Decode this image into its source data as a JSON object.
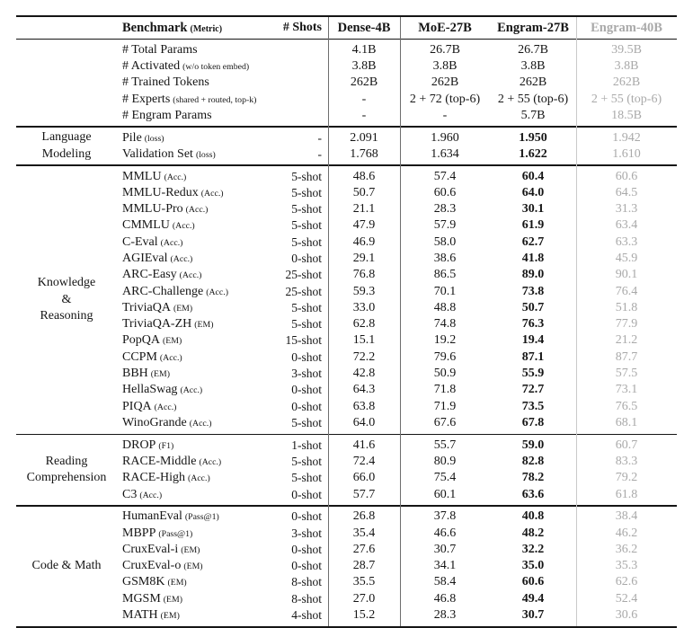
{
  "table": {
    "header": {
      "benchmark_label": "Benchmark",
      "metric_label": "(Metric)",
      "shots_label": "# Shots",
      "models": [
        "Dense-4B",
        "MoE-27B",
        "Engram-27B",
        "Engram-40B"
      ]
    },
    "colors": {
      "text": "#151515",
      "muted_column": "#a9a9a9",
      "rule": "#151515",
      "vline_dark": "#6e6e6e",
      "vline_light": "#c9c9c9"
    },
    "sections": [
      {
        "category_lines": [],
        "bold_engram": false,
        "rows": [
          {
            "name": "# Total Params",
            "metric": "",
            "shots": "",
            "values": [
              "4.1B",
              "26.7B",
              "26.7B",
              "39.5B"
            ]
          },
          {
            "name": "# Activated",
            "metric": "(w/o token embed)",
            "shots": "",
            "values": [
              "3.8B",
              "3.8B",
              "3.8B",
              "3.8B"
            ]
          },
          {
            "name": "# Trained Tokens",
            "metric": "",
            "shots": "",
            "values": [
              "262B",
              "262B",
              "262B",
              "262B"
            ]
          },
          {
            "name": "# Experts",
            "metric": "(shared + routed, top-k)",
            "shots": "",
            "values": [
              "-",
              "2 + 72 (top-6)",
              "2 + 55 (top-6)",
              "2 + 55 (top-6)"
            ]
          },
          {
            "name": "# Engram Params",
            "metric": "",
            "shots": "",
            "values": [
              "-",
              "-",
              "5.7B",
              "18.5B"
            ]
          }
        ]
      },
      {
        "category_lines": [
          "Language",
          "Modeling"
        ],
        "bold_engram": true,
        "rows": [
          {
            "name": "Pile",
            "metric": "(loss)",
            "shots": "-",
            "values": [
              "2.091",
              "1.960",
              "1.950",
              "1.942"
            ]
          },
          {
            "name": "Validation Set",
            "metric": "(loss)",
            "shots": "-",
            "values": [
              "1.768",
              "1.634",
              "1.622",
              "1.610"
            ]
          }
        ]
      },
      {
        "category_lines": [
          "Knowledge",
          "&",
          "Reasoning"
        ],
        "bold_engram": true,
        "rows": [
          {
            "name": "MMLU",
            "metric": "(Acc.)",
            "shots": "5-shot",
            "values": [
              "48.6",
              "57.4",
              "60.4",
              "60.6"
            ]
          },
          {
            "name": "MMLU-Redux",
            "metric": "(Acc.)",
            "shots": "5-shot",
            "values": [
              "50.7",
              "60.6",
              "64.0",
              "64.5"
            ]
          },
          {
            "name": "MMLU-Pro",
            "metric": "(Acc.)",
            "shots": "5-shot",
            "values": [
              "21.1",
              "28.3",
              "30.1",
              "31.3"
            ]
          },
          {
            "name": "CMMLU",
            "metric": "(Acc.)",
            "shots": "5-shot",
            "values": [
              "47.9",
              "57.9",
              "61.9",
              "63.4"
            ]
          },
          {
            "name": "C-Eval",
            "metric": "(Acc.)",
            "shots": "5-shot",
            "values": [
              "46.9",
              "58.0",
              "62.7",
              "63.3"
            ]
          },
          {
            "name": "AGIEval",
            "metric": "(Acc.)",
            "shots": "0-shot",
            "values": [
              "29.1",
              "38.6",
              "41.8",
              "45.9"
            ]
          },
          {
            "name": "ARC-Easy",
            "metric": "(Acc.)",
            "shots": "25-shot",
            "values": [
              "76.8",
              "86.5",
              "89.0",
              "90.1"
            ]
          },
          {
            "name": "ARC-Challenge",
            "metric": "(Acc.)",
            "shots": "25-shot",
            "values": [
              "59.3",
              "70.1",
              "73.8",
              "76.4"
            ]
          },
          {
            "name": "TriviaQA",
            "metric": "(EM)",
            "shots": "5-shot",
            "values": [
              "33.0",
              "48.8",
              "50.7",
              "51.8"
            ]
          },
          {
            "name": "TriviaQA-ZH",
            "metric": "(EM)",
            "shots": "5-shot",
            "values": [
              "62.8",
              "74.8",
              "76.3",
              "77.9"
            ]
          },
          {
            "name": "PopQA",
            "metric": "(EM)",
            "shots": "15-shot",
            "values": [
              "15.1",
              "19.2",
              "19.4",
              "21.2"
            ]
          },
          {
            "name": "CCPM",
            "metric": "(Acc.)",
            "shots": "0-shot",
            "values": [
              "72.2",
              "79.6",
              "87.1",
              "87.7"
            ]
          },
          {
            "name": "BBH",
            "metric": "(EM)",
            "shots": "3-shot",
            "values": [
              "42.8",
              "50.9",
              "55.9",
              "57.5"
            ]
          },
          {
            "name": "HellaSwag",
            "metric": "(Acc.)",
            "shots": "0-shot",
            "values": [
              "64.3",
              "71.8",
              "72.7",
              "73.1"
            ]
          },
          {
            "name": "PIQA",
            "metric": "(Acc.)",
            "shots": "0-shot",
            "values": [
              "63.8",
              "71.9",
              "73.5",
              "76.5"
            ]
          },
          {
            "name": "WinoGrande",
            "metric": "(Acc.)",
            "shots": "5-shot",
            "values": [
              "64.0",
              "67.6",
              "67.8",
              "68.1"
            ]
          }
        ]
      },
      {
        "category_lines": [
          "Reading",
          "Comprehension"
        ],
        "bold_engram": true,
        "rows": [
          {
            "name": "DROP",
            "metric": "(F1)",
            "shots": "1-shot",
            "values": [
              "41.6",
              "55.7",
              "59.0",
              "60.7"
            ]
          },
          {
            "name": "RACE-Middle",
            "metric": "(Acc.)",
            "shots": "5-shot",
            "values": [
              "72.4",
              "80.9",
              "82.8",
              "83.3"
            ]
          },
          {
            "name": "RACE-High",
            "metric": "(Acc.)",
            "shots": "5-shot",
            "values": [
              "66.0",
              "75.4",
              "78.2",
              "79.2"
            ]
          },
          {
            "name": "C3",
            "metric": "(Acc.)",
            "shots": "0-shot",
            "values": [
              "57.7",
              "60.1",
              "63.6",
              "61.8"
            ]
          }
        ]
      },
      {
        "category_lines": [
          "Code & Math"
        ],
        "bold_engram": true,
        "rows": [
          {
            "name": "HumanEval",
            "metric": "(Pass@1)",
            "shots": "0-shot",
            "values": [
              "26.8",
              "37.8",
              "40.8",
              "38.4"
            ]
          },
          {
            "name": "MBPP",
            "metric": "(Pass@1)",
            "shots": "3-shot",
            "values": [
              "35.4",
              "46.6",
              "48.2",
              "46.2"
            ]
          },
          {
            "name": "CruxEval-i",
            "metric": "(EM)",
            "shots": "0-shot",
            "values": [
              "27.6",
              "30.7",
              "32.2",
              "36.2"
            ]
          },
          {
            "name": "CruxEval-o",
            "metric": "(EM)",
            "shots": "0-shot",
            "values": [
              "28.7",
              "34.1",
              "35.0",
              "35.3"
            ]
          },
          {
            "name": "GSM8K",
            "metric": "(EM)",
            "shots": "8-shot",
            "values": [
              "35.5",
              "58.4",
              "60.6",
              "62.6"
            ]
          },
          {
            "name": "MGSM",
            "metric": "(EM)",
            "shots": "8-shot",
            "values": [
              "27.0",
              "46.8",
              "49.4",
              "52.4"
            ]
          },
          {
            "name": "MATH",
            "metric": "(EM)",
            "shots": "4-shot",
            "values": [
              "15.2",
              "28.3",
              "30.7",
              "30.6"
            ]
          }
        ]
      }
    ]
  }
}
